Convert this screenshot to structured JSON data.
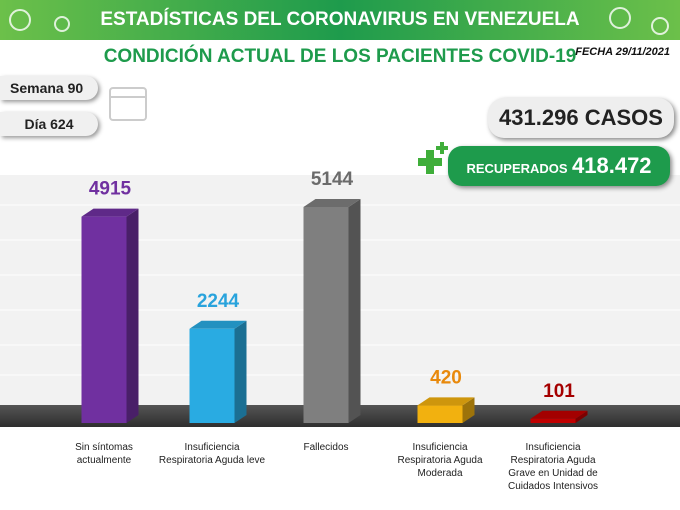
{
  "title": "ESTADÍSTICAS DEL CORONAVIRUS EN VENEZUELA",
  "date": "FECHA 29/11/2021",
  "week": "Semana 90",
  "day": "Día 624",
  "cases": {
    "number": "431.296",
    "label": "CASOS"
  },
  "recovered": {
    "label": "RECUPERADOS",
    "number": "418.472"
  },
  "chart_data": {
    "type": "bar",
    "title": "CONDICIÓN ACTUAL DE LOS PACIENTES COVID-19",
    "categories": [
      "Sin síntomas actualmente",
      "Insuficiencia Respiratoria Aguda leve",
      "Fallecidos",
      "Insuficiencia Respiratoria Aguda Moderada",
      "Insuficiencia Respiratoria Aguda Grave en Unidad de Cuidados Intensivos"
    ],
    "values": [
      4915,
      2244,
      5144,
      420,
      101
    ],
    "colors": [
      "#7030a0",
      "#29abe2",
      "#7f7f7f",
      "#f2b10f",
      "#c00000"
    ],
    "label_colors": [
      "#7030a0",
      "#29a3dc",
      "#6b6b6b",
      "#e8890c",
      "#a50000"
    ]
  }
}
